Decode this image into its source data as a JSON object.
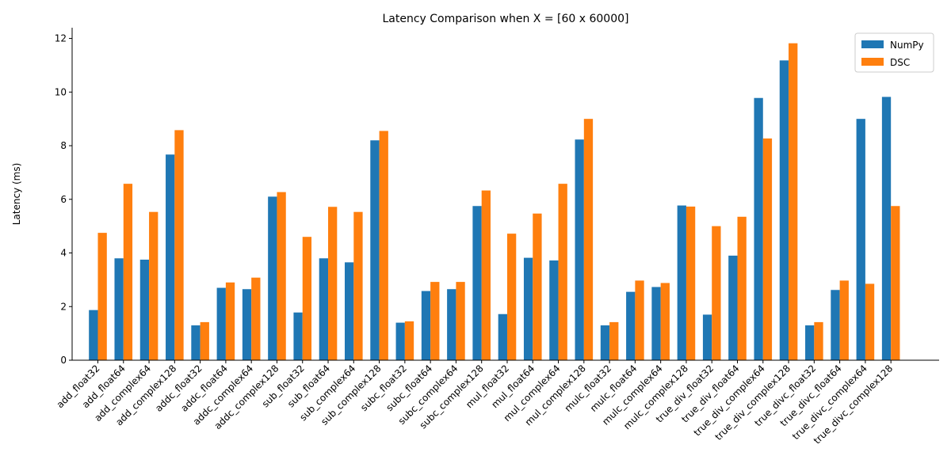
{
  "chart_data": {
    "type": "bar",
    "title": "Latency Comparison when X = [60 x 60000]",
    "xlabel": "",
    "ylabel": "Latency (ms)",
    "ylim": [
      0,
      12.4
    ],
    "yticks": [
      0,
      2,
      4,
      6,
      8,
      10,
      12
    ],
    "ytick_labels": [
      "0",
      "2",
      "4",
      "6",
      "8",
      "10",
      "12"
    ],
    "grid": false,
    "legend_position": "top-right",
    "categories": [
      "add_float32",
      "add_float64",
      "add_complex64",
      "add_complex128",
      "addc_float32",
      "addc_float64",
      "addc_complex64",
      "addc_complex128",
      "sub_float32",
      "sub_float64",
      "sub_complex64",
      "sub_complex128",
      "subc_float32",
      "subc_float64",
      "subc_complex64",
      "subc_complex128",
      "mul_float32",
      "mul_float64",
      "mul_complex64",
      "mul_complex128",
      "mulc_float32",
      "mulc_float64",
      "mulc_complex64",
      "mulc_complex128",
      "true_div_float32",
      "true_div_float64",
      "true_div_complex64",
      "true_div_complex128",
      "true_divc_float32",
      "true_divc_float64",
      "true_divc_complex64",
      "true_divc_complex128"
    ],
    "series": [
      {
        "name": "NumPy",
        "color": "#1f77b4",
        "values": [
          1.87,
          3.8,
          3.75,
          7.67,
          1.3,
          2.7,
          2.65,
          6.1,
          1.78,
          3.8,
          3.65,
          8.2,
          1.4,
          2.58,
          2.65,
          5.75,
          1.72,
          3.82,
          3.72,
          8.23,
          1.3,
          2.55,
          2.73,
          5.77,
          1.7,
          3.9,
          9.78,
          11.18,
          1.3,
          2.62,
          9.0,
          9.82
        ]
      },
      {
        "name": "DSC",
        "color": "#ff7f0e",
        "values": [
          4.75,
          6.58,
          5.53,
          8.58,
          1.42,
          2.9,
          3.08,
          6.27,
          4.6,
          5.72,
          5.53,
          8.55,
          1.45,
          2.92,
          2.92,
          6.33,
          4.72,
          5.47,
          6.58,
          9.0,
          1.42,
          2.97,
          2.88,
          5.73,
          5.0,
          5.35,
          8.27,
          11.82,
          1.42,
          2.97,
          2.85,
          5.75
        ]
      }
    ]
  }
}
